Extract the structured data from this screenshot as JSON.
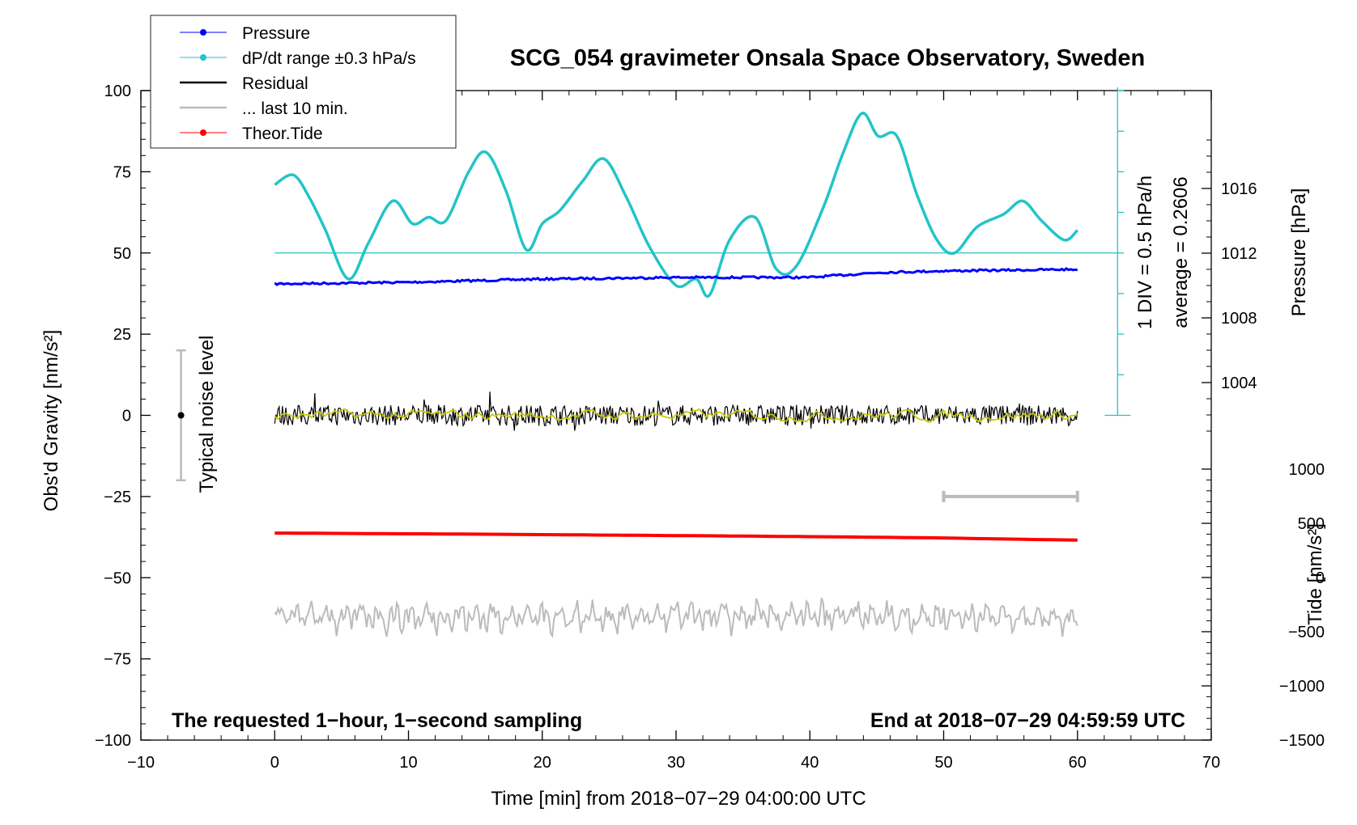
{
  "chart_data": {
    "type": "line",
    "title": "SCG_054 gravimeter Onsala Space Observatory, Sweden",
    "xlabel": "Time [min] from 2018−07−29 04:00:00 UTC",
    "ylabel_left": "Obs'd Gravity [nm/s²]",
    "ylabel_right_pressure": "Pressure [hPa]",
    "ylabel_right_tide": "Tide [nm/s²]",
    "xlim": [
      -10,
      70
    ],
    "ylim": [
      -100,
      100
    ],
    "x_ticks": [
      "−10",
      "0",
      "10",
      "20",
      "30",
      "40",
      "50",
      "60",
      "70"
    ],
    "y_ticks": [
      "−100",
      "−75",
      "−50",
      "−25",
      "0",
      "25",
      "50",
      "75",
      "100"
    ],
    "pressure_ticks": [
      "1004",
      "1008",
      "1012",
      "1016"
    ],
    "tide_ticks": [
      "−1500",
      "−1000",
      "−500",
      "0",
      "500",
      "1000"
    ],
    "annotation_left": "The requested 1−hour, 1−second sampling",
    "annotation_right": "End at 2018−07−29 04:59:59 UTC",
    "noise_label": "Typical noise level",
    "noise_bar": {
      "x": -7,
      "center": 0,
      "half_range": 20
    },
    "div_label": "1 DIV = 0.5 hPa/h",
    "average_label": "average = 0.2606",
    "last10_bar": {
      "x_start": 50,
      "x_end": 60,
      "y": -25
    },
    "legend": [
      {
        "label": "Pressure",
        "color": "#0000ff",
        "marker": true
      },
      {
        "label": "dP/dt range ±0.3 hPa/s",
        "color": "#22c4c8",
        "marker": true
      },
      {
        "label": "Residual",
        "color": "#000000",
        "marker": false
      },
      {
        "label": "... last 10 min.",
        "color": "#bbbbbb",
        "marker": false
      },
      {
        "label": "Theor.Tide",
        "color": "#ff0000",
        "marker": true
      }
    ],
    "series": [
      {
        "name": "Pressure",
        "color": "#0000ff",
        "axis": "pressure_hPa",
        "x": [
          0,
          10,
          20,
          30,
          40,
          45,
          50,
          60
        ],
        "y": [
          1010.1,
          1010.2,
          1010.4,
          1010.5,
          1010.5,
          1010.8,
          1010.9,
          1011.0
        ]
      },
      {
        "name": "dP/dt range ±0.3 hPa/s",
        "color": "#22c4c8",
        "axis": "gravity_units",
        "x": [
          0,
          1.4,
          2.6,
          3.8,
          5.5,
          7.0,
          8.8,
          10.3,
          11.5,
          12.8,
          14.5,
          15.8,
          17.3,
          18.8,
          20.0,
          21.3,
          23.0,
          24.6,
          26.3,
          28.0,
          30.0,
          31.5,
          32.5,
          34.0,
          35.9,
          37.5,
          39.0,
          41.0,
          42.5,
          43.9,
          45.1,
          46.5,
          48.0,
          49.5,
          50.8,
          52.5,
          54.5,
          55.9,
          57.3,
          59.0,
          60.0
        ],
        "y": [
          71,
          74,
          67,
          57,
          42,
          53,
          66,
          59,
          61,
          60,
          75,
          81,
          69,
          51,
          59,
          63,
          72,
          79,
          67,
          52,
          40,
          42,
          37,
          54,
          61,
          45,
          46,
          64,
          81,
          93,
          86,
          86,
          68,
          54,
          50,
          58,
          62,
          66,
          60,
          54,
          57
        ]
      },
      {
        "name": "Residual",
        "color": "#000000",
        "axis": "gravity_units",
        "x": [
          0,
          60
        ],
        "y": [
          0,
          0
        ]
      },
      {
        "name": "Residual (smoothed)",
        "color": "#c8c800",
        "axis": "gravity_units",
        "x": [
          0,
          60
        ],
        "y": [
          0,
          0
        ]
      },
      {
        "name": "... last 10 min.",
        "color": "#bbbbbb",
        "axis": "gravity_units",
        "x": [
          0,
          60
        ],
        "y": [
          -62,
          -62
        ]
      },
      {
        "name": "Theor.Tide",
        "color": "#ff0000",
        "axis": "tide_units",
        "x": [
          0,
          15,
          32,
          42,
          50,
          57,
          60
        ],
        "y": [
          410,
          400,
          385,
          375,
          365,
          350,
          345
        ]
      }
    ]
  }
}
